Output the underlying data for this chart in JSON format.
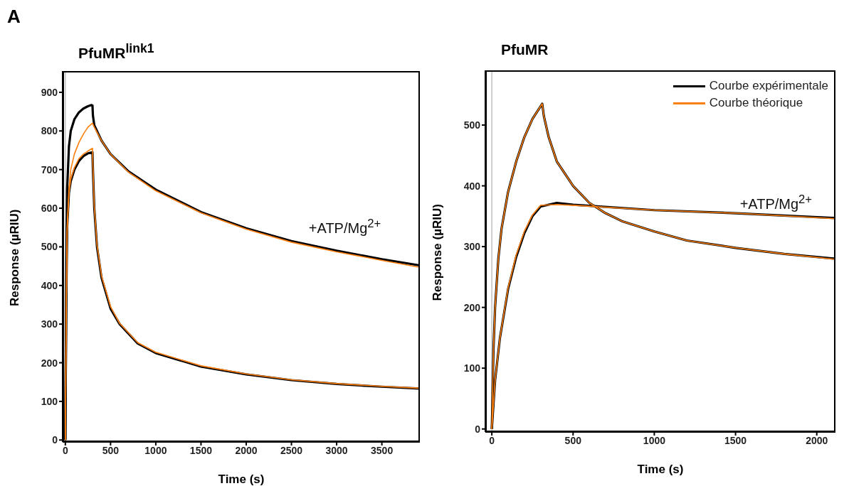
{
  "chart_data": [
    {
      "type": "line",
      "title": "PfuMR$^{link1}$",
      "xlabel": "Time (s)",
      "ylabel": "Response (µRIU)",
      "xlim": [
        -30,
        3920
      ],
      "ylim": [
        -5,
        955
      ],
      "xticks": [
        0,
        500,
        1000,
        1500,
        2000,
        2500,
        3000,
        3500
      ],
      "yticks": [
        0,
        100,
        200,
        300,
        400,
        500,
        600,
        700,
        800,
        900
      ],
      "legend": false,
      "annotations": [
        "A",
        "+ATP/Mg$^{2+}$"
      ],
      "ref_lines": [
        {
          "axis": "x",
          "value": 0,
          "color": "#c0c0c0"
        }
      ],
      "series": [
        {
          "color": "#000000",
          "x": [
            0,
            10,
            20,
            40,
            60,
            100,
            150,
            200,
            250,
            290,
            300,
            305,
            320,
            400,
            500,
            700,
            1000,
            1500,
            2000,
            2500,
            3000,
            3500,
            3920
          ],
          "values": [
            0,
            400,
            650,
            760,
            800,
            830,
            848,
            858,
            864,
            867,
            866,
            840,
            815,
            775,
            740,
            695,
            648,
            590,
            548,
            515,
            490,
            468,
            452
          ]
        },
        {
          "color": "#000000",
          "x": [
            0,
            10,
            20,
            40,
            60,
            100,
            150,
            200,
            250,
            300,
            305,
            320,
            350,
            400,
            500,
            600,
            800,
            1000,
            1500,
            2000,
            2500,
            3000,
            3500,
            3920
          ],
          "values": [
            0,
            350,
            550,
            640,
            670,
            700,
            722,
            735,
            742,
            745,
            700,
            600,
            500,
            420,
            340,
            300,
            250,
            225,
            190,
            170,
            155,
            145,
            138,
            133
          ]
        },
        {
          "color": "#ff7f0e",
          "x": [
            0,
            10,
            20,
            40,
            60,
            100,
            150,
            200,
            250,
            300,
            320,
            400,
            500,
            700,
            1000,
            1500,
            2000,
            2500,
            3000,
            3500,
            3920
          ],
          "values": [
            0,
            350,
            550,
            650,
            700,
            740,
            770,
            792,
            810,
            820,
            810,
            775,
            740,
            693,
            645,
            588,
            546,
            512,
            487,
            465,
            447
          ]
        },
        {
          "color": "#ff7f0e",
          "x": [
            0,
            10,
            20,
            40,
            60,
            100,
            150,
            200,
            250,
            300,
            305,
            320,
            350,
            400,
            500,
            600,
            800,
            1000,
            1500,
            2000,
            2500,
            3000,
            3500,
            3920
          ],
          "values": [
            0,
            330,
            540,
            640,
            675,
            705,
            728,
            740,
            748,
            755,
            705,
            605,
            505,
            425,
            345,
            302,
            252,
            227,
            192,
            171,
            156,
            146,
            139,
            134
          ]
        }
      ]
    },
    {
      "type": "line",
      "title": "PfuMR",
      "xlabel": "Time (s)",
      "ylabel": "Response (µRIU)",
      "xlim": [
        -40,
        2115
      ],
      "ylim": [
        -5,
        590
      ],
      "xticks": [
        0,
        500,
        1000,
        1500,
        2000
      ],
      "yticks": [
        0,
        100,
        200,
        300,
        400,
        500
      ],
      "legend": "top right",
      "annotations": [
        "+ATP/Mg$^{2+}$"
      ],
      "ref_lines": [
        {
          "axis": "x",
          "value": 0,
          "color": "#c0c0c0"
        }
      ],
      "series": [
        {
          "name": "Courbe expérimentale",
          "color": "#000000",
          "x": [
            0,
            10,
            20,
            40,
            60,
            100,
            150,
            200,
            250,
            310,
            320,
            350,
            400,
            500,
            600,
            700,
            800,
            1000,
            1200,
            1500,
            1800,
            2115
          ],
          "values": [
            0,
            130,
            200,
            280,
            330,
            390,
            440,
            480,
            510,
            535,
            515,
            480,
            440,
            400,
            372,
            355,
            342,
            325,
            310,
            298,
            288,
            280
          ]
        },
        {
          "color": "#000000",
          "x": [
            0,
            20,
            50,
            100,
            150,
            200,
            250,
            300,
            400,
            500,
            1000,
            1500,
            2115
          ],
          "values": [
            0,
            80,
            150,
            230,
            283,
            322,
            350,
            366,
            372,
            369,
            360,
            355,
            347
          ]
        },
        {
          "name": "Courbe théorique",
          "color": "#ff7f0e",
          "x": [
            0,
            10,
            20,
            40,
            60,
            100,
            150,
            200,
            250,
            310,
            320,
            350,
            400,
            500,
            600,
            700,
            800,
            1000,
            1200,
            1500,
            1800,
            2115
          ],
          "values": [
            0,
            130,
            200,
            280,
            330,
            390,
            440,
            480,
            510,
            535,
            515,
            480,
            440,
            400,
            372,
            355,
            342,
            325,
            310,
            298,
            288,
            279
          ]
        },
        {
          "color": "#ff7f0e",
          "x": [
            0,
            20,
            50,
            100,
            150,
            200,
            250,
            300,
            400,
            500,
            1000,
            1500,
            2115
          ],
          "values": [
            0,
            80,
            150,
            232,
            286,
            325,
            352,
            368,
            369,
            368,
            360,
            355,
            346
          ]
        }
      ]
    }
  ]
}
